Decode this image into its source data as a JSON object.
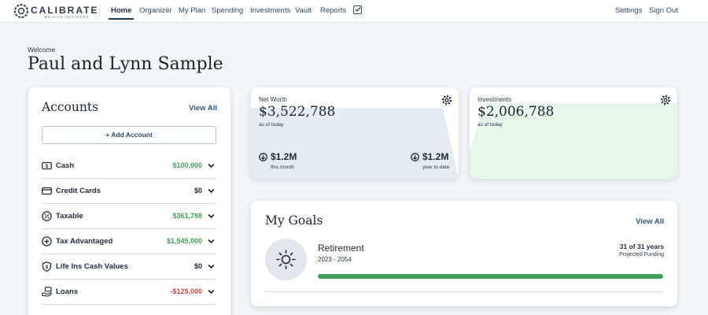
{
  "nav": {
    "logo_name": "CALIBRATE",
    "logo_sub": "WEALTH ADVISORS",
    "links": [
      "Home",
      "Organizer",
      "My Plan",
      "Spending",
      "Investments",
      "Vault",
      "Reports"
    ],
    "active": "Home",
    "settings": "Settings",
    "sign_out": "Sign Out"
  },
  "welcome": {
    "greeting": "Welcome",
    "names": "Paul and Lynn Sample"
  },
  "accounts": {
    "title": "Accounts",
    "view_all": "View All",
    "add_account": "Add Account",
    "rows": [
      {
        "label": "Cash",
        "value": "$100,000",
        "icon": "cash-icon",
        "color": "#3f9f5a"
      },
      {
        "label": "Credit Cards",
        "value": "$0",
        "icon": "credit-card-icon",
        "color": "#1f2a37"
      },
      {
        "label": "Taxable",
        "value": "$361,788",
        "icon": "percent-icon",
        "color": "#3f9f5a"
      },
      {
        "label": "Tax Advantaged",
        "value": "$1,545,000",
        "icon": "plus-circle-icon",
        "color": "#3f9f5a"
      },
      {
        "label": "Life Ins Cash Values",
        "value": "$0",
        "icon": "shield-dollar-icon",
        "color": "#1f2a37"
      },
      {
        "label": "Loans",
        "value": "-$125,000",
        "icon": "hand-money-icon",
        "color": "#d04646"
      }
    ]
  },
  "net_worth": {
    "label": "Net Worth",
    "value": "$3,522,788",
    "sub": "as of today",
    "month_change": "$1.2M",
    "month_label": "this month",
    "ytd_change": "$1.2M",
    "ytd_label": "year to date"
  },
  "investments": {
    "label": "Investments",
    "value": "$2,006,788",
    "sub": "as of today"
  },
  "goals": {
    "title": "My Goals",
    "view_all": "View All",
    "items": [
      {
        "name": "Retirement",
        "years": "2023 - 2054",
        "status": "31 of 31 years",
        "status_label": "Projected Funding",
        "progress": 1.0
      }
    ]
  },
  "colors": {
    "accent": "#1e3a5c",
    "positive": "#3f9f5a",
    "negative": "#d04646"
  }
}
